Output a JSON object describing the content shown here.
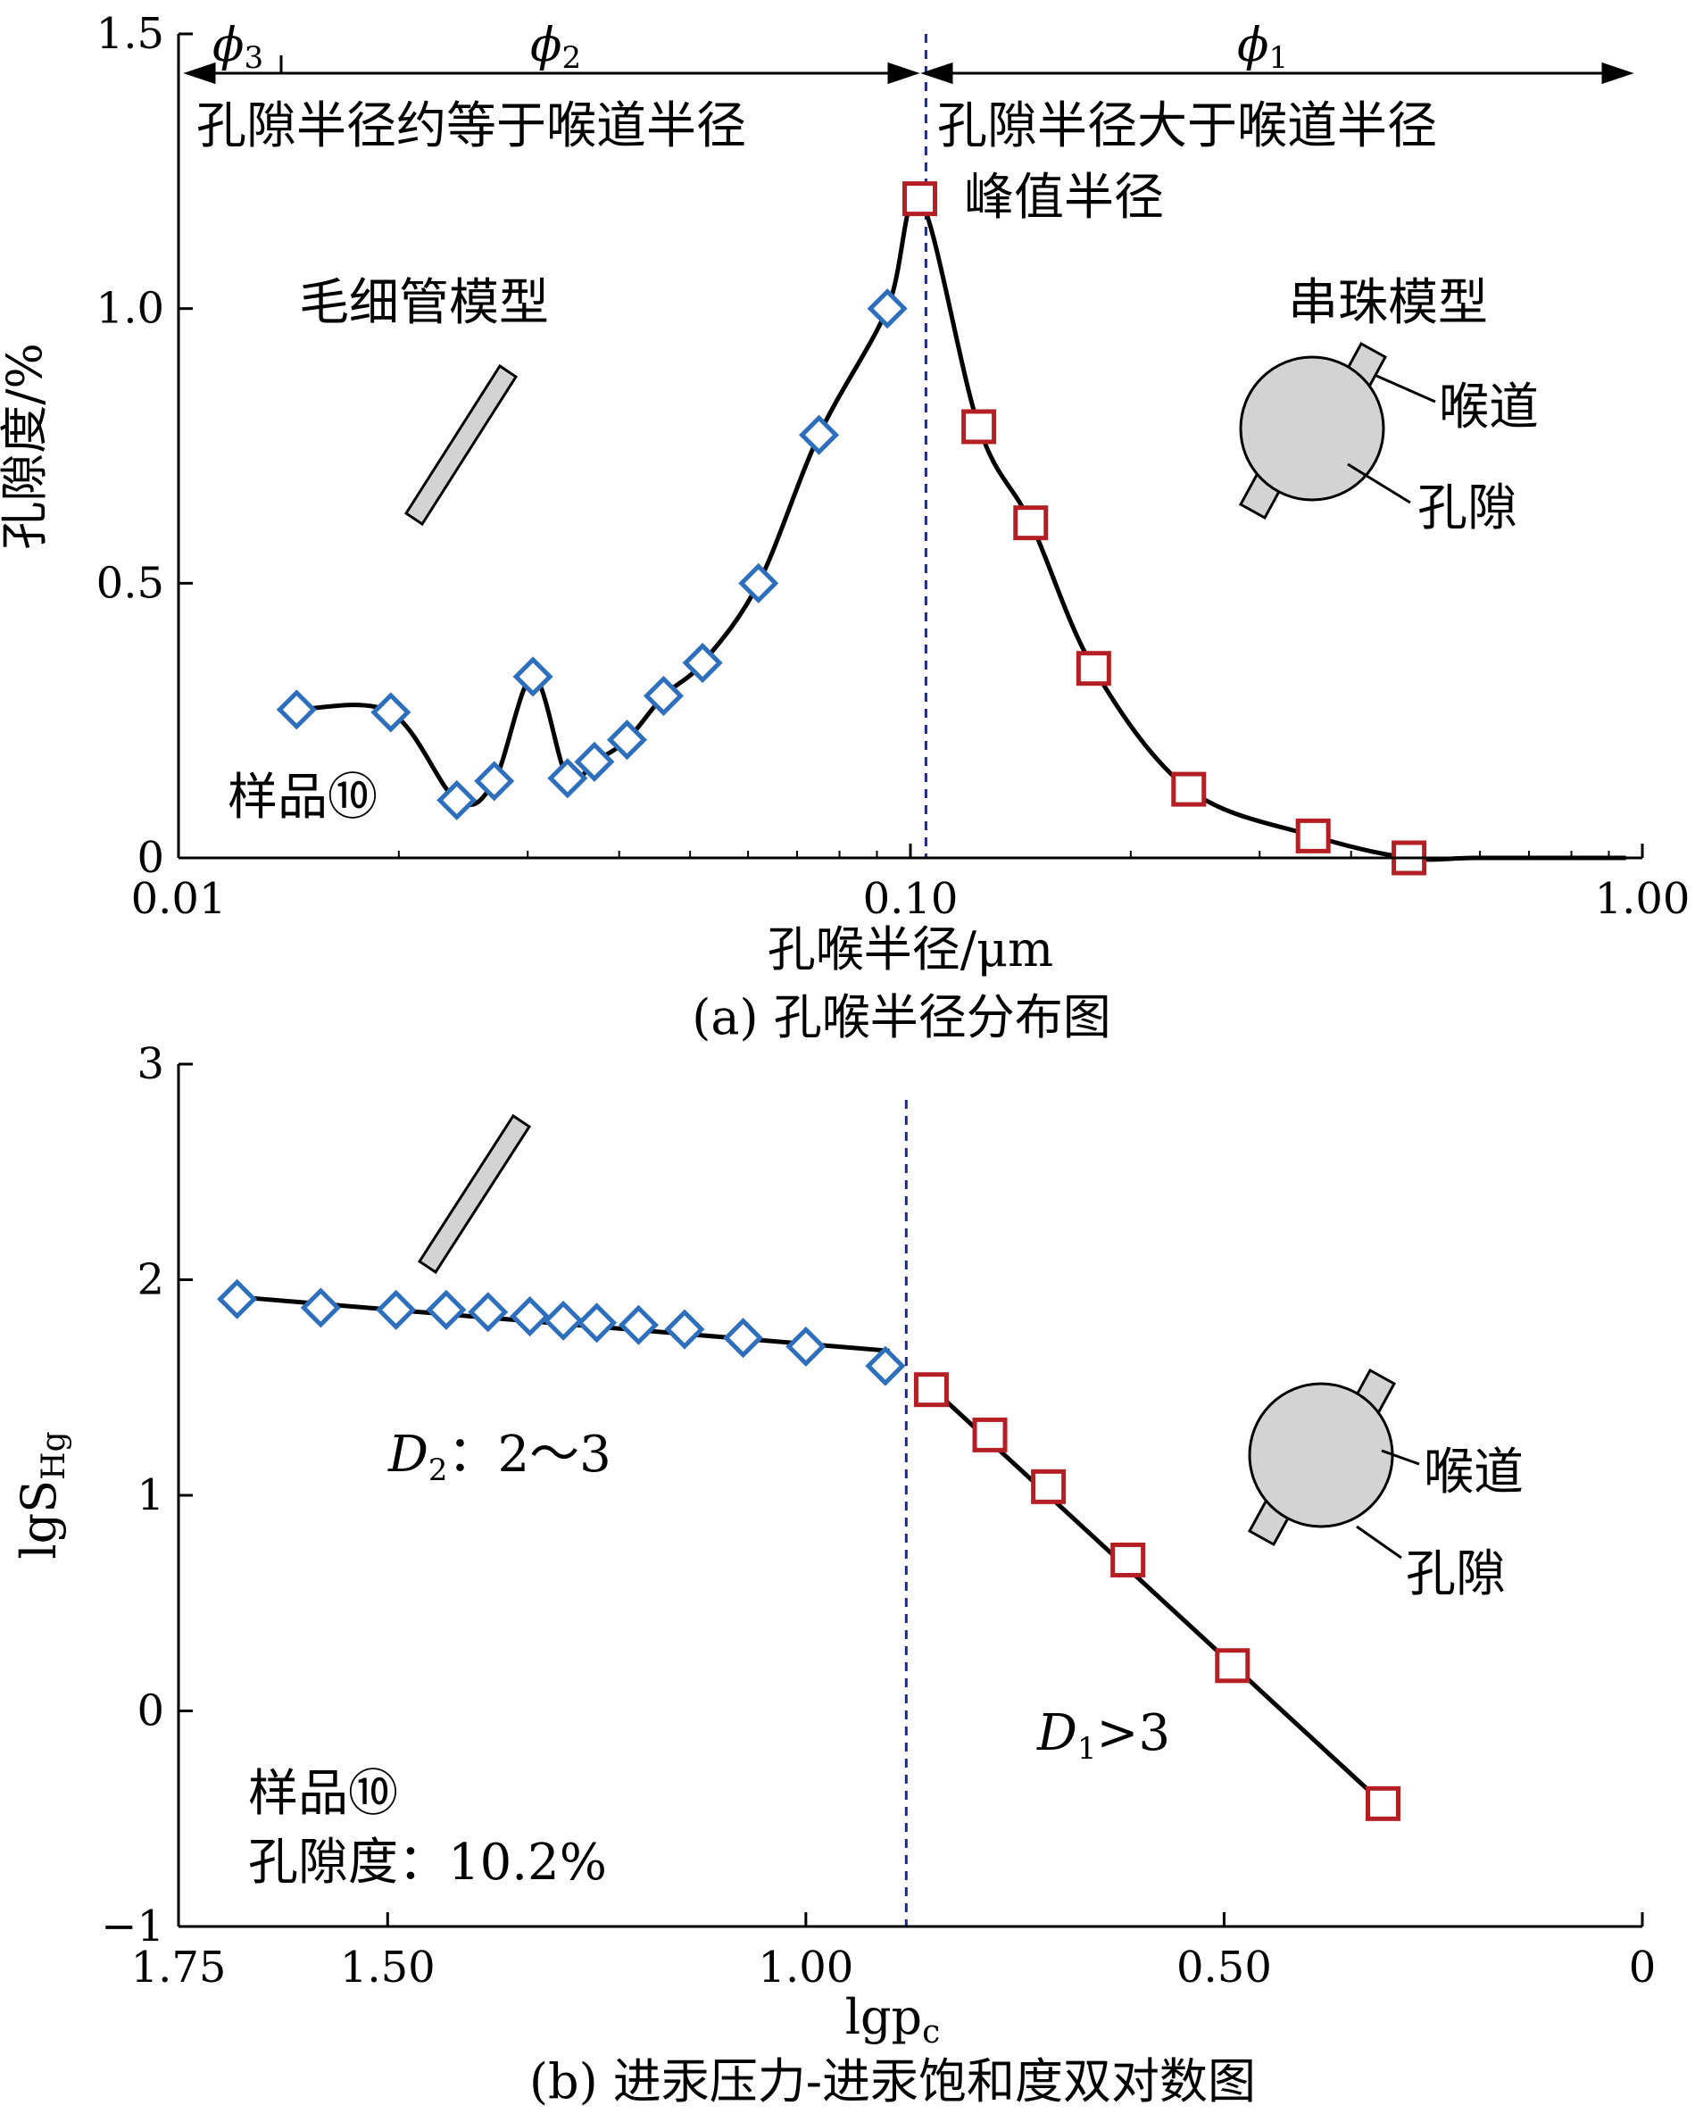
{
  "chart_data": [
    {
      "type": "line",
      "caption": "(a) 孔喉半径分布图",
      "xlabel": "孔喉半径/μm",
      "ylabel": "孔隙度/%",
      "x_scale": "log",
      "xlim": [
        0.01,
        1.0
      ],
      "ylim": [
        0,
        1.5
      ],
      "x_ticks": [
        0.01,
        0.1,
        1.0
      ],
      "x_tick_labels": [
        "0.01",
        "0.10",
        "1.00"
      ],
      "y_ticks": [
        0,
        0.5,
        1.0,
        1.5
      ],
      "y_tick_labels": [
        "0",
        "0.5",
        "1.0",
        "1.5"
      ],
      "divider_x": 0.105,
      "series": [
        {
          "marker": "diamond",
          "color": "#2e6fbd",
          "x": [
            0.0145,
            0.0195,
            0.024,
            0.027,
            0.0305,
            0.034,
            0.037,
            0.041,
            0.046,
            0.052,
            0.062,
            0.075,
            0.093
          ],
          "y": [
            0.27,
            0.265,
            0.105,
            0.14,
            0.33,
            0.145,
            0.175,
            0.215,
            0.295,
            0.355,
            0.5,
            0.77,
            1.0
          ]
        },
        {
          "marker": "square",
          "color": "#b41f24",
          "x": [
            0.103,
            0.124,
            0.146,
            0.178,
            0.24,
            0.355,
            0.48
          ],
          "y": [
            1.2,
            0.785,
            0.61,
            0.345,
            0.125,
            0.04,
            0.0
          ]
        }
      ],
      "curve_color": "#000000",
      "annotations": {
        "phi3": "ϕ",
        "phi3_sub": "3",
        "phi2": "ϕ",
        "phi2_sub": "2",
        "phi1": "ϕ",
        "phi1_sub": "1",
        "region_left": "孔隙半径约等于喉道半径",
        "region_right": "孔隙半径大于喉道半径",
        "peak_label": "峰值半径",
        "capillary_model": "毛细管模型",
        "bead_model": "串珠模型",
        "throat": "喉道",
        "pore": "孔隙",
        "sample": "样品⑩"
      }
    },
    {
      "type": "line",
      "caption": "(b) 进汞压力-进汞饱和度双对数图",
      "xlabel": "lgp",
      "xlabel_sub": "c",
      "ylabel": "lgS",
      "ylabel_sub": "Hg",
      "x_reversed": true,
      "xlim": [
        1.75,
        0
      ],
      "ylim": [
        -1,
        3
      ],
      "x_ticks": [
        1.75,
        1.5,
        1.0,
        0.5,
        0
      ],
      "x_tick_labels": [
        "1.75",
        "1.50",
        "1.00",
        "0.50",
        "0"
      ],
      "y_ticks": [
        -1,
        0,
        1,
        2,
        3
      ],
      "y_tick_labels": [
        "−1",
        "0",
        "1",
        "2",
        "3"
      ],
      "divider_x": 0.88,
      "series": [
        {
          "marker": "diamond",
          "color": "#2e6fbd",
          "x": [
            1.68,
            1.58,
            1.49,
            1.43,
            1.38,
            1.33,
            1.29,
            1.25,
            1.2,
            1.145,
            1.075,
            1.0,
            0.905
          ],
          "y": [
            1.91,
            1.87,
            1.86,
            1.86,
            1.85,
            1.83,
            1.81,
            1.8,
            1.79,
            1.77,
            1.73,
            1.69,
            1.6
          ]
        },
        {
          "marker": "square",
          "color": "#b41f24",
          "x": [
            0.85,
            0.78,
            0.71,
            0.615,
            0.49,
            0.31
          ],
          "y": [
            1.49,
            1.28,
            1.04,
            0.7,
            0.21,
            -0.43
          ]
        }
      ],
      "fit_lines": [
        {
          "x": [
            1.68,
            0.9
          ],
          "y": [
            1.92,
            1.67
          ]
        },
        {
          "x": [
            0.85,
            0.31
          ],
          "y": [
            1.5,
            -0.43
          ]
        }
      ],
      "annotations": {
        "d2_label": "D",
        "d2_sub": "2",
        "d2_value": "：2～3",
        "d1_label": "D",
        "d1_sub": "1",
        "d1_value": ">3",
        "throat": "喉道",
        "pore": "孔隙",
        "sample": "样品⑩",
        "porosity": "孔隙度：10.2%"
      }
    }
  ]
}
